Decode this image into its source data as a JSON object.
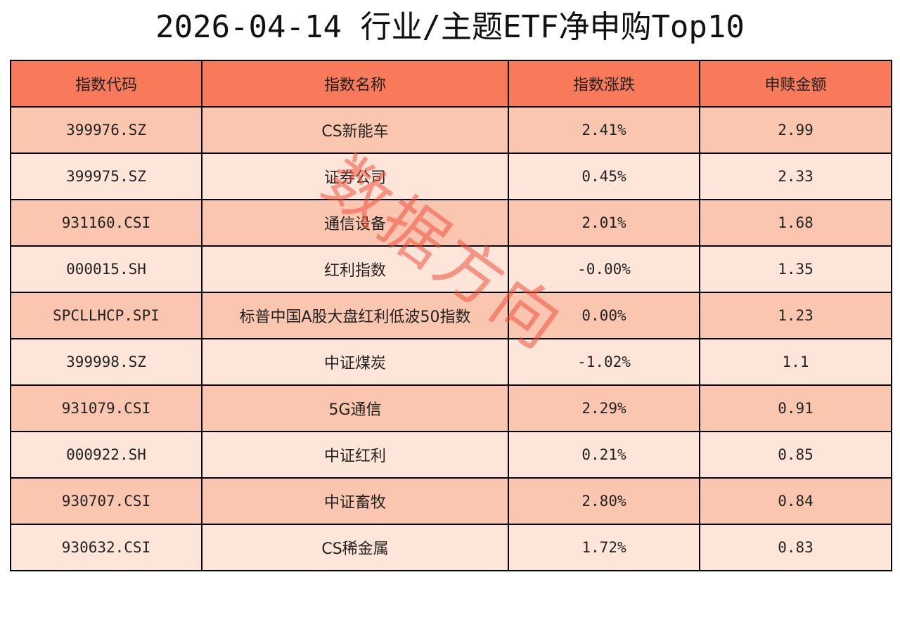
{
  "title": "2026-04-14 行业/主题ETF净申购Top10",
  "watermark": "数据方向",
  "colors": {
    "header_bg": "#f97a5a",
    "row_odd_bg": "#fbc6b0",
    "row_even_bg": "#fde5da",
    "watermark": "#f0503c"
  },
  "chart_data": {
    "type": "table",
    "title": "2026-04-14 行业/主题ETF净申购Top10",
    "columns": [
      "指数代码",
      "指数名称",
      "指数涨跌",
      "申赎金额"
    ],
    "rows": [
      [
        "399976.SZ",
        "CS新能车",
        "2.41%",
        "2.99"
      ],
      [
        "399975.SZ",
        "证券公司",
        "0.45%",
        "2.33"
      ],
      [
        "931160.CSI",
        "通信设备",
        "2.01%",
        "1.68"
      ],
      [
        "000015.SH",
        "红利指数",
        "-0.00%",
        "1.35"
      ],
      [
        "SPCLLHCP.SPI",
        "标普中国A股大盘红利低波50指数",
        "0.00%",
        "1.23"
      ],
      [
        "399998.SZ",
        "中证煤炭",
        "-1.02%",
        "1.1"
      ],
      [
        "931079.CSI",
        "5G通信",
        "2.29%",
        "0.91"
      ],
      [
        "000922.SH",
        "中证红利",
        "0.21%",
        "0.85"
      ],
      [
        "930707.CSI",
        "中证畜牧",
        "2.80%",
        "0.84"
      ],
      [
        "930632.CSI",
        "CS稀金属",
        "1.72%",
        "0.83"
      ]
    ]
  }
}
